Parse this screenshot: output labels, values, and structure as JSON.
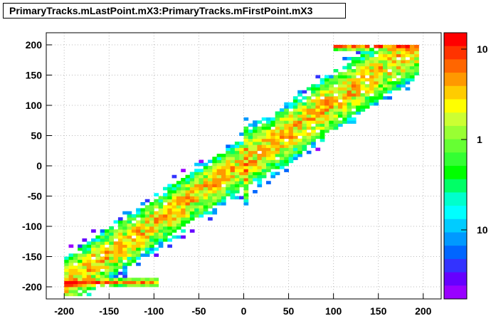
{
  "chart_data": {
    "type": "heatmap",
    "title": "PrimaryTracks.mLastPoint.mX3:PrimaryTracks.mFirstPoint.mX3",
    "xlabel": "",
    "ylabel": "",
    "xlim": [
      -220,
      220
    ],
    "ylim": [
      -220,
      220
    ],
    "x_ticks": [
      -200,
      -150,
      -100,
      -50,
      0,
      50,
      100,
      150,
      200
    ],
    "y_ticks": [
      -200,
      -150,
      -100,
      -50,
      0,
      50,
      100,
      150,
      200
    ],
    "grid": true,
    "colorbar": {
      "scale": "log",
      "labels": [
        "10",
        "1",
        "10"
      ],
      "colors": [
        "#ff0000",
        "#ff3300",
        "#ff6600",
        "#ff9900",
        "#ffcc00",
        "#ffff00",
        "#ccff33",
        "#99ff33",
        "#66ff33",
        "#33ff33",
        "#00ff00",
        "#00ff66",
        "#00ffcc",
        "#00ffff",
        "#00ccff",
        "#0099ff",
        "#0066ff",
        "#3333ff",
        "#6600ff",
        "#9900ff"
      ]
    },
    "bands": [
      {
        "x_range": [
          -200,
          -5
        ],
        "slope": 1.0,
        "intercept": 5,
        "width": 28,
        "peak": 8
      },
      {
        "x_range": [
          -5,
          5
        ],
        "slope": 0,
        "intercept": 0,
        "width": 40,
        "peak": 12,
        "vertical": true
      },
      {
        "x_range": [
          5,
          190
        ],
        "slope": 1.0,
        "intercept": 5,
        "width": 32,
        "peak": 8
      },
      {
        "x_range": [
          -200,
          -100
        ],
        "slope": 0,
        "intercept": -195,
        "width": 4,
        "peak": 12
      },
      {
        "x_range": [
          100,
          190
        ],
        "slope": 0,
        "intercept": 195,
        "width": 4,
        "peak": 12
      }
    ],
    "bin_size": 5
  }
}
